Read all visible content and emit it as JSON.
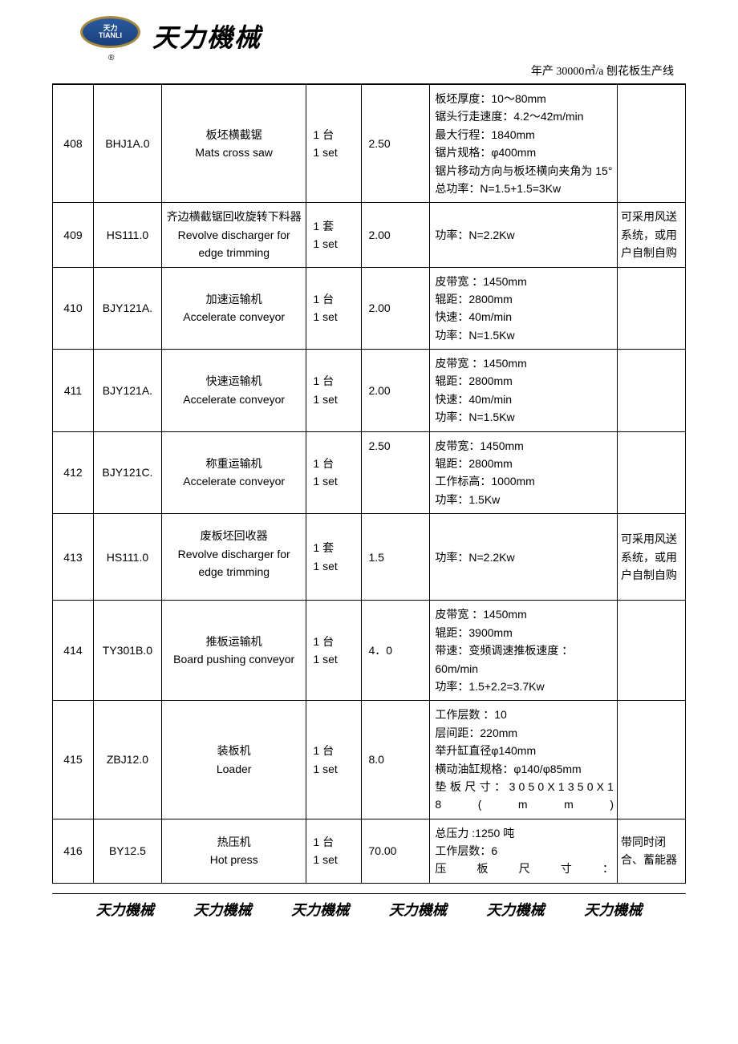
{
  "header": {
    "logo_text": "天力\nTIANLI",
    "logo_rmark": "®",
    "company_name": "天力機械",
    "sub_header": "年产 30000㎥/a 刨花板生产线"
  },
  "rows": [
    {
      "no": "408",
      "code": "BHJ1A.0",
      "name_cn": "板坯横截锯",
      "name_en": "Mats cross saw",
      "qty_cn": "1 台",
      "qty_en": "1 set",
      "value": "2.50",
      "spec": "板坯厚度：10～80mm\n锯头行走速度：4.2～42m/min\n最大行程：1840mm\n锯片规格：φ400mm\n锯片移动方向与板坯横向夹角为 15°\n总功率：N=1.5+1.5=3Kw",
      "note": ""
    },
    {
      "no": "409",
      "code": "HS111.0",
      "name_cn": "齐边横截锯回收旋转下料器",
      "name_en": "Revolve discharger for edge trimming",
      "qty_cn": "1 套",
      "qty_en": "1 set",
      "value": "2.00",
      "spec": "功率：N=2.2Kw",
      "note": "可采用风送系统，或用户自制自购"
    },
    {
      "no": "410",
      "code": "BJY121A.",
      "name_cn": "加速运输机",
      "name_en": "Accelerate conveyor",
      "qty_cn": "1 台",
      "qty_en": "1 set",
      "value": "2.00",
      "spec": "皮带宽 ：1450mm\n辊距：2800mm\n快速：40m/min\n功率：N=1.5Kw",
      "note": ""
    },
    {
      "no": "411",
      "code": "BJY121A.",
      "name_cn": "快速运输机",
      "name_en": "Accelerate conveyor",
      "qty_cn": "1 台",
      "qty_en": "1 set",
      "value": "2.00",
      "spec": "皮带宽 ：1450mm\n辊距：2800mm\n快速：40m/min\n功率：N=1.5Kw",
      "note": ""
    },
    {
      "no": "412",
      "code": "BJY121C.",
      "name_cn": "称重运输机",
      "name_en": "Accelerate conveyor",
      "qty_cn": "1 台",
      "qty_en": "1 set",
      "value": "2.50",
      "val_top": true,
      "spec": "皮带宽：1450mm\n辊距：2800mm\n工作标高：1000mm\n功率：1.5Kw",
      "note": ""
    },
    {
      "no": "413",
      "code": "HS111.0",
      "name_cn": "废板坯回收器",
      "name_en": "Revolve discharger for edge trimming",
      "qty_cn": "1 套",
      "qty_en": "1 set",
      "value": "1.5",
      "spec": "功率：N=2.2Kw",
      "note": "可采用风送系统，或用户自制自购",
      "extra_pad": true
    },
    {
      "no": "414",
      "code": "TY301B.0",
      "name_cn": "推板运输机",
      "name_en": "Board pushing conveyor",
      "qty_cn": "1 台",
      "qty_en": "1 set",
      "value": "4．0",
      "spec": "皮带宽 ：1450mm\n辊距：3900mm\n带速：变频调速推板速度 ：60m/min\n功率：1.5+2.2=3.7Kw",
      "note": ""
    },
    {
      "no": "415",
      "code": "ZBJ12.0",
      "name_cn": "装板机",
      "name_en": "Loader",
      "qty_cn": "1 台",
      "qty_en": "1 set",
      "value": "8.0",
      "spec": "工作层数 ：10\n层间距：220mm\n举升缸直径φ140mm\n横动油缸规格：φ140/φ85mm\n垫板尺寸：3050X1350X18(mm)",
      "spec_justify_lines": [
        4
      ],
      "note": ""
    },
    {
      "no": "416",
      "code": "BY12.5",
      "name_cn": "热压机",
      "name_en": "Hot press",
      "qty_cn": "1 台",
      "qty_en": "1 set",
      "value": "70.00",
      "spec": "总压力 :1250 吨\n工作层数：6\n压板尺寸：",
      "spec_justify_lines": [
        2
      ],
      "note": "带同时闭合、蓄能器"
    }
  ],
  "footer": {
    "repeat_text": "天力機械",
    "count": 6
  }
}
